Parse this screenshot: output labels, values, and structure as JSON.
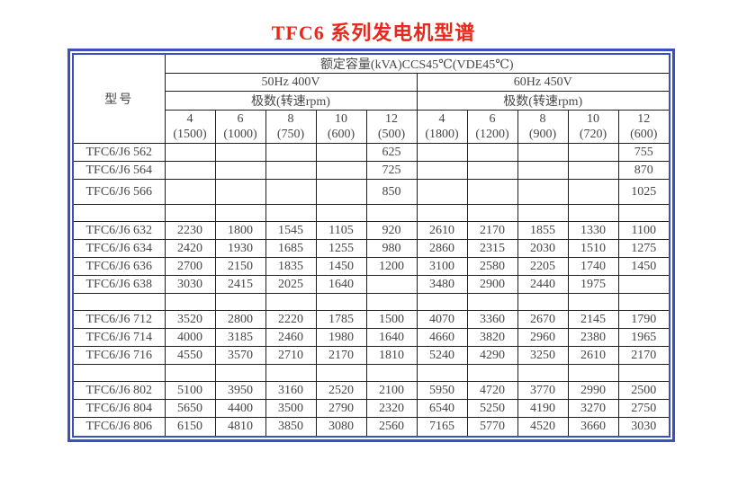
{
  "title": "TFC6 系列发电机型谱",
  "colors": {
    "title_red": "#e5291c",
    "frame_blue": "#3a50c2",
    "divider_cyan": "#55c7f2",
    "grid_black": "#1f1f1f"
  },
  "table": {
    "model_header": "型号",
    "capacity_header": "额定容量(kVA)CCS45℃(VDE45℃)",
    "freq_headers": [
      "50Hz 400V",
      "60Hz 450V"
    ],
    "poles_header_left": "极数(转速rpm)",
    "poles_header_right": "极数(转速rpm)",
    "pole_cols": [
      {
        "pole": "4",
        "speed": "(1500)"
      },
      {
        "pole": "6",
        "speed": "(1000)"
      },
      {
        "pole": "8",
        "speed": "(750)"
      },
      {
        "pole": "10",
        "speed": "(600)"
      },
      {
        "pole": "12",
        "speed": "(500)"
      },
      {
        "pole": "4",
        "speed": "(1800)"
      },
      {
        "pole": "6",
        "speed": "(1200)"
      },
      {
        "pole": "8",
        "speed": "(900)"
      },
      {
        "pole": "10",
        "speed": "(720)"
      },
      {
        "pole": "12",
        "speed": "(600)"
      }
    ],
    "rows": [
      {
        "model": "TFC6/J6 562",
        "values": [
          "",
          "",
          "",
          "",
          "625",
          "",
          "",
          "",
          "",
          "755"
        ]
      },
      {
        "model": "TFC6/J6 564",
        "values": [
          "",
          "",
          "",
          "",
          "725",
          "",
          "",
          "",
          "",
          "870"
        ]
      },
      {
        "model": "TFC6/J6 566",
        "values": [
          "",
          "",
          "",
          "",
          "850",
          "",
          "",
          "",
          "",
          "1025"
        ],
        "tall": true
      },
      {
        "model": "",
        "values": [
          "",
          "",
          "",
          "",
          "",
          "",
          "",
          "",
          "",
          ""
        ],
        "sep": true
      },
      {
        "model": "TFC6/J6 632",
        "values": [
          "2230",
          "1800",
          "1545",
          "1105",
          "920",
          "2610",
          "2170",
          "1855",
          "1330",
          "1100"
        ]
      },
      {
        "model": "TFC6/J6 634",
        "values": [
          "2420",
          "1930",
          "1685",
          "1255",
          "980",
          "2860",
          "2315",
          "2030",
          "1510",
          "1275"
        ]
      },
      {
        "model": "TFC6/J6 636",
        "values": [
          "2700",
          "2150",
          "1835",
          "1450",
          "1200",
          "3100",
          "2580",
          "2205",
          "1740",
          "1450"
        ]
      },
      {
        "model": "TFC6/J6 638",
        "values": [
          "3030",
          "2415",
          "2025",
          "1640",
          "",
          "3480",
          "2900",
          "2440",
          "1975",
          ""
        ]
      },
      {
        "model": "",
        "values": [
          "",
          "",
          "",
          "",
          "",
          "",
          "",
          "",
          "",
          ""
        ],
        "sep": true
      },
      {
        "model": "TFC6/J6 712",
        "values": [
          "3520",
          "2800",
          "2220",
          "1785",
          "1500",
          "4070",
          "3360",
          "2670",
          "2145",
          "1790"
        ]
      },
      {
        "model": "TFC6/J6 714",
        "values": [
          "4000",
          "3185",
          "2460",
          "1980",
          "1640",
          "4660",
          "3820",
          "2960",
          "2380",
          "1965"
        ]
      },
      {
        "model": "TFC6/J6 716",
        "values": [
          "4550",
          "3570",
          "2710",
          "2170",
          "1810",
          "5240",
          "4290",
          "3250",
          "2610",
          "2170"
        ]
      },
      {
        "model": "",
        "values": [
          "",
          "",
          "",
          "",
          "",
          "",
          "",
          "",
          "",
          ""
        ],
        "sep": true
      },
      {
        "model": "TFC6/J6 802",
        "values": [
          "5100",
          "3950",
          "3160",
          "2520",
          "2100",
          "5950",
          "4720",
          "3770",
          "2990",
          "2500"
        ]
      },
      {
        "model": "TFC6/J6 804",
        "values": [
          "5650",
          "4400",
          "3500",
          "2790",
          "2320",
          "6540",
          "5250",
          "4190",
          "3270",
          "2750"
        ]
      },
      {
        "model": "TFC6/J6 806",
        "values": [
          "6150",
          "4810",
          "3850",
          "3080",
          "2560",
          "7165",
          "5770",
          "4520",
          "3660",
          "3030"
        ]
      }
    ]
  }
}
